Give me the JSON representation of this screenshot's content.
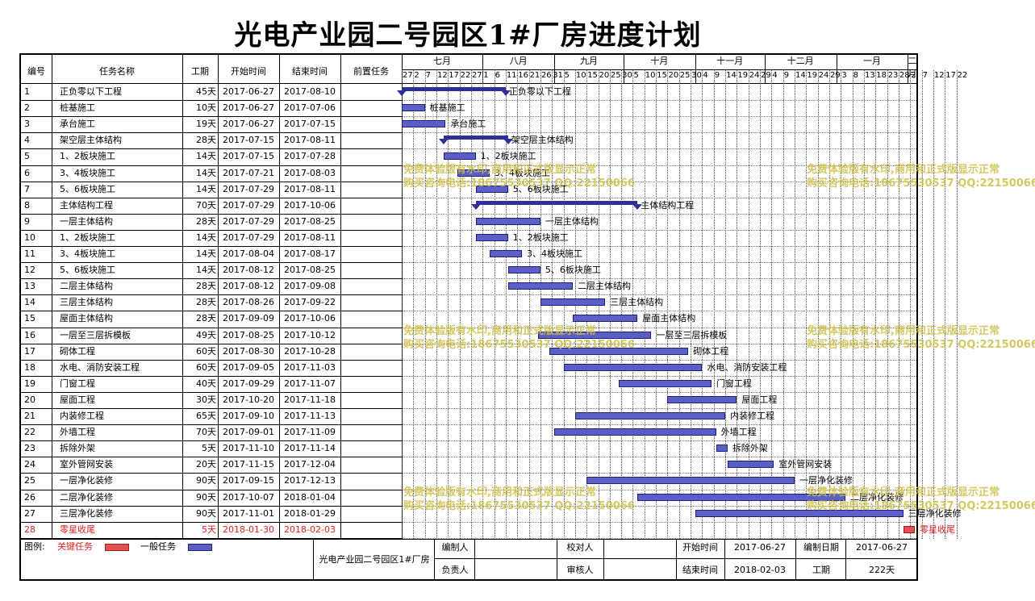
{
  "title": "光电产业园二号园区1#厂房进度计划",
  "columns": {
    "no": "编号",
    "name": "任务名称",
    "duration": "工期",
    "start": "开始时间",
    "end": "结束时间",
    "pred": "前置任务"
  },
  "months": [
    "七月",
    "八月",
    "九月",
    "十月",
    "十一月",
    "十二月",
    "一月",
    "二月"
  ],
  "day_ticks": [
    "27",
    "2",
    "7",
    "12",
    "17",
    "22",
    "27",
    "1",
    "6",
    "11",
    "16",
    "21",
    "26",
    "31",
    "5",
    "10",
    "15",
    "20",
    "25",
    "30",
    "5",
    "10",
    "15",
    "20",
    "25",
    "30",
    "4",
    "9",
    "14",
    "19",
    "24",
    "29",
    "4",
    "9",
    "14",
    "19",
    "24",
    "29",
    "3",
    "8",
    "13",
    "18",
    "23",
    "28",
    "2",
    "7",
    "12",
    "17",
    "22"
  ],
  "tasks": [
    {
      "no": "1",
      "name": "正负零以下工程",
      "duration": "45天",
      "start": "2017-06-27",
      "end": "2017-08-10",
      "type": "summary"
    },
    {
      "no": "2",
      "name": "桩基施工",
      "duration": "10天",
      "start": "2017-06-27",
      "end": "2017-07-06",
      "type": "normal"
    },
    {
      "no": "3",
      "name": "承台施工",
      "duration": "19天",
      "start": "2017-06-27",
      "end": "2017-07-15",
      "type": "normal"
    },
    {
      "no": "4",
      "name": "架空层主体结构",
      "duration": "28天",
      "start": "2017-07-15",
      "end": "2017-08-11",
      "type": "summary"
    },
    {
      "no": "5",
      "name": "1、2板块施工",
      "duration": "14天",
      "start": "2017-07-15",
      "end": "2017-07-28",
      "type": "normal"
    },
    {
      "no": "6",
      "name": "3、4板块施工",
      "duration": "14天",
      "start": "2017-07-21",
      "end": "2017-08-03",
      "type": "normal"
    },
    {
      "no": "7",
      "name": "5、6板块施工",
      "duration": "14天",
      "start": "2017-07-29",
      "end": "2017-08-11",
      "type": "normal"
    },
    {
      "no": "8",
      "name": "主体结构工程",
      "duration": "70天",
      "start": "2017-07-29",
      "end": "2017-10-06",
      "type": "summary"
    },
    {
      "no": "9",
      "name": "一层主体结构",
      "duration": "28天",
      "start": "2017-07-29",
      "end": "2017-08-25",
      "type": "normal"
    },
    {
      "no": "10",
      "name": "1、2板块施工",
      "duration": "14天",
      "start": "2017-07-29",
      "end": "2017-08-11",
      "type": "normal"
    },
    {
      "no": "11",
      "name": "3、4板块施工",
      "duration": "14天",
      "start": "2017-08-04",
      "end": "2017-08-17",
      "type": "normal"
    },
    {
      "no": "12",
      "name": "5、6板块施工",
      "duration": "14天",
      "start": "2017-08-12",
      "end": "2017-08-25",
      "type": "normal"
    },
    {
      "no": "13",
      "name": "二层主体结构",
      "duration": "28天",
      "start": "2017-08-12",
      "end": "2017-09-08",
      "type": "normal"
    },
    {
      "no": "14",
      "name": "三层主体结构",
      "duration": "28天",
      "start": "2017-08-26",
      "end": "2017-09-22",
      "type": "normal"
    },
    {
      "no": "15",
      "name": "屋面主体结构",
      "duration": "28天",
      "start": "2017-09-09",
      "end": "2017-10-06",
      "type": "normal"
    },
    {
      "no": "16",
      "name": "一层至三层拆模板",
      "duration": "49天",
      "start": "2017-08-25",
      "end": "2017-10-12",
      "type": "normal"
    },
    {
      "no": "17",
      "name": "砌体工程",
      "duration": "60天",
      "start": "2017-08-30",
      "end": "2017-10-28",
      "type": "normal"
    },
    {
      "no": "18",
      "name": "水电、消防安装工程",
      "duration": "60天",
      "start": "2017-09-05",
      "end": "2017-11-03",
      "type": "normal"
    },
    {
      "no": "19",
      "name": "门窗工程",
      "duration": "40天",
      "start": "2017-09-29",
      "end": "2017-11-07",
      "type": "normal"
    },
    {
      "no": "20",
      "name": "屋面工程",
      "duration": "30天",
      "start": "2017-10-20",
      "end": "2017-11-18",
      "type": "normal"
    },
    {
      "no": "21",
      "name": "内装修工程",
      "duration": "65天",
      "start": "2017-09-10",
      "end": "2017-11-13",
      "type": "normal"
    },
    {
      "no": "22",
      "name": "外墙工程",
      "duration": "70天",
      "start": "2017-09-01",
      "end": "2017-11-09",
      "type": "normal"
    },
    {
      "no": "23",
      "name": "拆除外架",
      "duration": "5天",
      "start": "2017-11-10",
      "end": "2017-11-14",
      "type": "normal"
    },
    {
      "no": "24",
      "name": "室外管网安装",
      "duration": "20天",
      "start": "2017-11-15",
      "end": "2017-12-04",
      "type": "normal"
    },
    {
      "no": "25",
      "name": "一层净化装修",
      "duration": "90天",
      "start": "2017-09-15",
      "end": "2017-12-13",
      "type": "normal"
    },
    {
      "no": "26",
      "name": "二层净化装修",
      "duration": "90天",
      "start": "2017-10-07",
      "end": "2018-01-04",
      "type": "normal"
    },
    {
      "no": "27",
      "name": "三层净化装修",
      "duration": "90天",
      "start": "2017-11-01",
      "end": "2018-01-29",
      "type": "normal"
    },
    {
      "no": "28",
      "name": "零星收尾",
      "duration": "5天",
      "start": "2018-01-30",
      "end": "2018-02-03",
      "type": "critical"
    }
  ],
  "legend": {
    "label": "图例:",
    "critical": "关键任务",
    "normal": "一般任务",
    "critical_color": "#e25050",
    "normal_color": "#5c5fc7"
  },
  "footer": {
    "project": "光电产业园二号园区1#厂房",
    "editor_label": "编制人",
    "checker_label": "校对人",
    "owner_label": "负责人",
    "reviewer_label": "审核人",
    "start_label": "开始时间",
    "start_value": "2017-06-27",
    "edit_date_label": "编制日期",
    "edit_date_value": "2017-06-27",
    "end_label": "结束时间",
    "end_value": "2018-02-03",
    "duration_label": "工期",
    "duration_value": "222天"
  },
  "watermark": {
    "line1": "免费体验版有水印,商用和正式版显示正常",
    "line2": "购买咨询电话:18675530537 QQ:22150066"
  }
}
